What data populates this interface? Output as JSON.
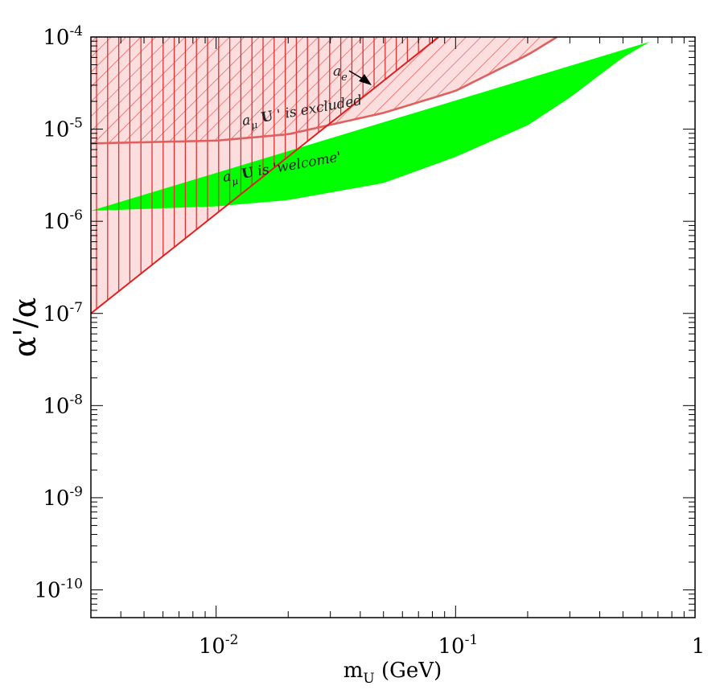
{
  "chart_data": {
    "type": "area",
    "xlabel": {
      "base": "m",
      "sub": "U",
      "rest": " (GeV)"
    },
    "ylabel": {
      "base": "α'/α"
    },
    "x_scale": "log",
    "y_scale": "log",
    "xlim": [
      0.003,
      1.0
    ],
    "ylim": [
      5e-11,
      0.0001
    ],
    "x_ticks": [
      {
        "value": 0.01,
        "base": "10",
        "exp": "-2"
      },
      {
        "value": 0.1,
        "base": "10",
        "exp": "-1"
      },
      {
        "value": 1,
        "base": "1",
        "exp": ""
      }
    ],
    "y_ticks": [
      {
        "value": 0.0001,
        "base": "10",
        "exp": "-4"
      },
      {
        "value": 1e-05,
        "base": "10",
        "exp": "-5"
      },
      {
        "value": 1e-06,
        "base": "10",
        "exp": "-6"
      },
      {
        "value": 1e-07,
        "base": "10",
        "exp": "-7"
      },
      {
        "value": 1e-08,
        "base": "10",
        "exp": "-8"
      },
      {
        "value": 1e-09,
        "base": "10",
        "exp": "-9"
      },
      {
        "value": 1e-10,
        "base": "10",
        "exp": "-10"
      }
    ],
    "series": [
      {
        "name": "a_μ U' is 'welcome'",
        "kind": "band",
        "color": "#00ff00",
        "x": [
          0.003,
          0.01,
          0.02,
          0.05,
          0.1,
          0.2,
          0.3,
          0.5,
          0.7
        ],
        "y_low": [
          1.3e-06,
          1.45e-06,
          1.7e-06,
          2.6e-06,
          5e-06,
          1.1e-05,
          2.2e-05,
          6e-05,
          0.0001
        ],
        "y_high": [
          4.6e-06,
          5.5e-06,
          6.8e-06,
          1.05e-05,
          1.85e-05,
          4.2e-05,
          7.5e-05,
          0.0001,
          0.0001
        ]
      },
      {
        "name": "a_μ U' is excluded",
        "kind": "upper-region",
        "color": "#e06060",
        "fill": "#fcdede",
        "x": [
          0.003,
          0.01,
          0.02,
          0.05,
          0.1,
          0.2,
          0.265
        ],
        "y": [
          7e-06,
          7.5e-06,
          8.8e-06,
          1.5e-05,
          2.6e-05,
          6.4e-05,
          0.0001
        ]
      },
      {
        "name": "a_e",
        "kind": "line-boundary",
        "color": "#e02020",
        "x": [
          0.003,
          0.085
        ],
        "y": [
          1e-07,
          0.0001
        ]
      }
    ],
    "annotations": {
      "excluded_label": {
        "a": "a",
        "mu": "μ",
        "U": "U",
        "rest": " ' is excluded"
      },
      "welcome_label": {
        "a": "a",
        "mu": "μ",
        "U": "U",
        "rest": " is 'welcome'"
      },
      "ae_label": {
        "a": "a",
        "e": "e"
      }
    },
    "grid": false,
    "legend": "none"
  }
}
